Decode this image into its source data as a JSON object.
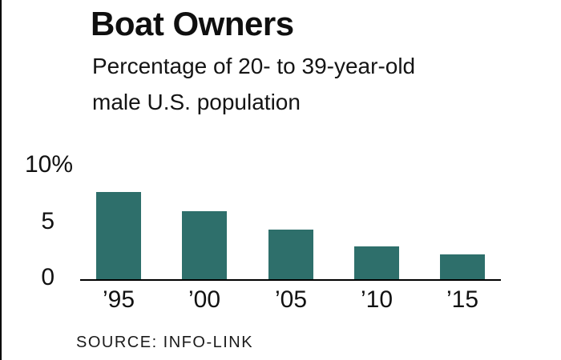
{
  "chart": {
    "title": "Boat Owners",
    "subtitle": "Percentage of 20- to 39-year-old\nmale U.S. population",
    "source": "SOURCE: INFO-LINK"
  },
  "chart_data": {
    "type": "bar",
    "categories": [
      "’95",
      "’00",
      "’05",
      "’10",
      "’15"
    ],
    "values": [
      7.8,
      6.1,
      4.5,
      3.0,
      2.3
    ],
    "title": "Boat Owners",
    "subtitle": "Percentage of 20- to 39-year-old male U.S. population",
    "xlabel": "",
    "ylabel": "",
    "ylim": [
      0,
      10
    ],
    "yticks": [
      {
        "value": 0,
        "label": "0"
      },
      {
        "value": 5,
        "label": "5"
      },
      {
        "value": 10,
        "label": "10%"
      }
    ],
    "bar_color": "#2E6F6B",
    "axis_color": "#000000",
    "grid": false,
    "legend": false,
    "source": "SOURCE: INFO-LINK"
  }
}
